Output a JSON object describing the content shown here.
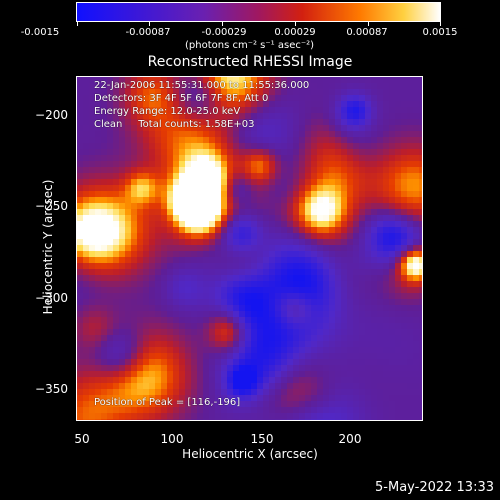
{
  "colorbar": {
    "tick_labels": [
      "-0.0015",
      "-0.00087",
      "-0.00029",
      "0.00029",
      "0.00087",
      "0.0015"
    ],
    "units": "(photons cm⁻² s⁻¹ asec⁻²)",
    "range": [
      -0.0015,
      0.0015
    ],
    "colors": [
      "#1010ff",
      "#7a1a9a",
      "#c03020",
      "#ff6a00",
      "#ffc040",
      "#ffffff"
    ]
  },
  "title": "Reconstructed RHESSI Image",
  "overlay": {
    "line1": "22-Jan-2006 11:55:31.000 to 11:55:36.000",
    "line2": "Detectors: 3F 4F 5F 6F 7F 8F, Att 0",
    "line3": "Energy Range: 12.0-25.0 keV",
    "line4": "Clean     Total counts: 1.58E+03",
    "peak": "Position of Peak = [116,-196]"
  },
  "chart_data": {
    "type": "heatmap",
    "title": "Reconstructed RHESSI Image",
    "xlabel": "Heliocentric X (arcsec)",
    "ylabel": "Heliocentric Y (arcsec)",
    "xlim": [
      47,
      238
    ],
    "ylim": [
      -370,
      -178
    ],
    "xticks": [
      50,
      100,
      150,
      200
    ],
    "yticks": [
      -200,
      -250,
      -300,
      -350
    ],
    "xtick_labels": [
      "50",
      "100",
      "150",
      "200"
    ],
    "ytick_labels": [
      "−200",
      "−250",
      "−300",
      "−350"
    ],
    "colorbar_range": [
      -0.0015,
      0.0015
    ],
    "peak_position": [
      116,
      -196
    ],
    "grid": false
  },
  "footer": {
    "date": "5-May-2022 13:33"
  }
}
